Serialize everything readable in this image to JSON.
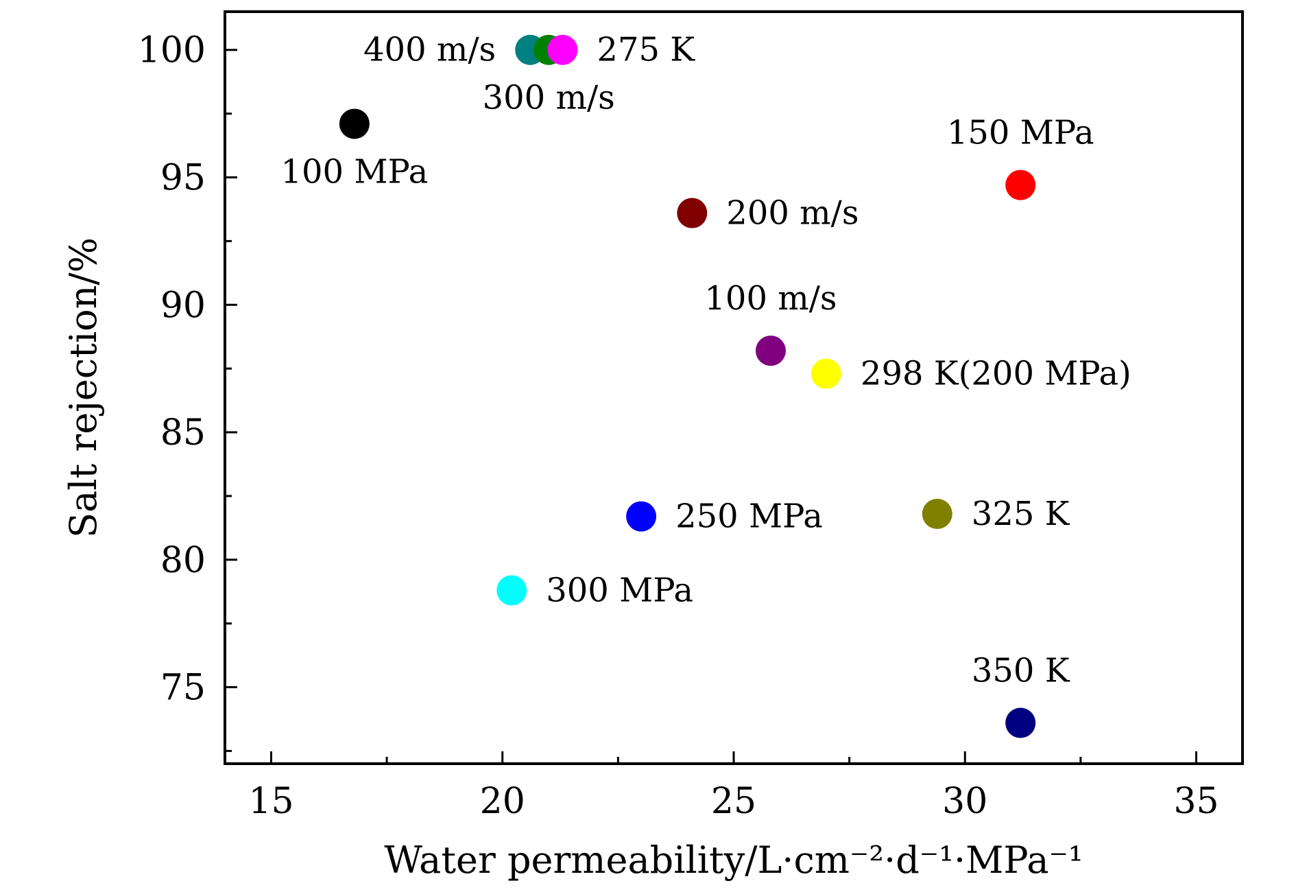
{
  "chart_data": {
    "type": "scatter",
    "title": "",
    "xlabel": "Water permeability/L·cm⁻²·d⁻¹·MPa⁻¹",
    "ylabel": "Salt rejection/%",
    "xlim": [
      14,
      36
    ],
    "ylim": [
      72,
      101.5
    ],
    "x_ticks": [
      15,
      20,
      25,
      30,
      35
    ],
    "x_minor_ticks": [
      17.5,
      22.5,
      27.5,
      32.5
    ],
    "y_ticks": [
      75,
      80,
      85,
      90,
      95,
      100
    ],
    "y_minor_ticks": [
      72.5,
      77.5,
      82.5,
      87.5,
      92.5,
      97.5
    ],
    "grid": false,
    "legend": false,
    "points": [
      {
        "label": "100 MPa",
        "x": 16.8,
        "y": 97.1,
        "color": "#000000",
        "label_pos": "below"
      },
      {
        "label": "400 m/s",
        "x": 20.6,
        "y": 100.0,
        "color": "#008080",
        "label_pos": "left"
      },
      {
        "label": "300 m/s",
        "x": 21.0,
        "y": 100.0,
        "color": "#008000",
        "label_pos": "below"
      },
      {
        "label": "275 K",
        "x": 21.3,
        "y": 100.0,
        "color": "#ff00ff",
        "label_pos": "right"
      },
      {
        "label": "150 MPa",
        "x": 31.2,
        "y": 94.7,
        "color": "#ff0000",
        "label_pos": "above"
      },
      {
        "label": "200 m/s",
        "x": 24.1,
        "y": 93.6,
        "color": "#800000",
        "label_pos": "right"
      },
      {
        "label": "100 m/s",
        "x": 25.8,
        "y": 88.2,
        "color": "#800080",
        "label_pos": "above"
      },
      {
        "label": "298 K(200 MPa)",
        "x": 27.0,
        "y": 87.3,
        "color": "#ffff00",
        "label_pos": "right"
      },
      {
        "label": "250 MPa",
        "x": 23.0,
        "y": 81.7,
        "color": "#0000ff",
        "label_pos": "right"
      },
      {
        "label": "325 K",
        "x": 29.4,
        "y": 81.8,
        "color": "#808000",
        "label_pos": "right"
      },
      {
        "label": "300 MPa",
        "x": 20.2,
        "y": 78.8,
        "color": "#00ffff",
        "label_pos": "right"
      },
      {
        "label": "350 K",
        "x": 31.2,
        "y": 73.6,
        "color": "#000080",
        "label_pos": "above"
      }
    ]
  }
}
